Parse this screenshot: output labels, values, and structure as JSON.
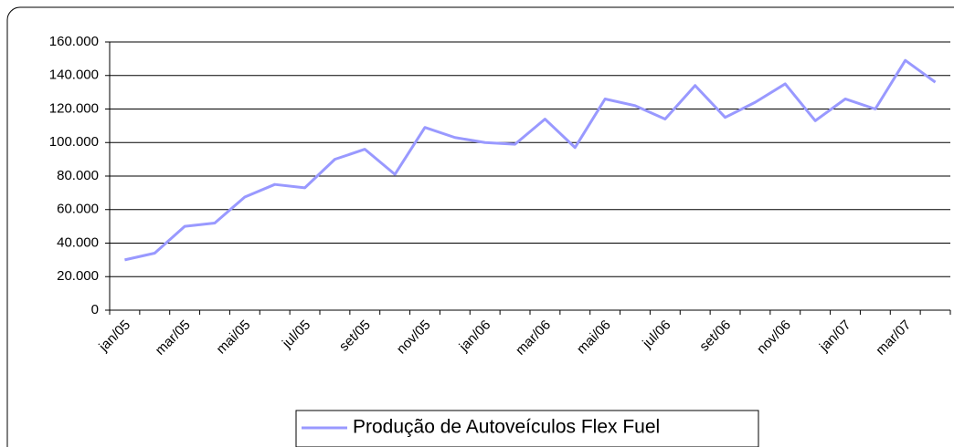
{
  "chart_data": {
    "type": "line",
    "categories": [
      "jan/05",
      null,
      "mar/05",
      null,
      "mai/05",
      null,
      "jul/05",
      null,
      "set/05",
      null,
      "nov/05",
      null,
      "jan/06",
      null,
      "mar/06",
      null,
      "mai/06",
      null,
      "jul/06",
      null,
      "set/06",
      null,
      "nov/06",
      null,
      "jan/07",
      null,
      "mar/07",
      null
    ],
    "series": [
      {
        "name": "Produção de Autoveículos Flex Fuel",
        "color": "#9999ff",
        "values": [
          30000,
          34000,
          50000,
          52000,
          67500,
          75000,
          73000,
          90000,
          96000,
          81000,
          109000,
          103000,
          100000,
          99000,
          114000,
          97000,
          126000,
          122000,
          114000,
          134000,
          115000,
          124000,
          135000,
          113000,
          126000,
          120000,
          149000,
          136000
        ]
      }
    ],
    "ylim": [
      0,
      160000
    ],
    "yticks": [
      0,
      {
        "value": 20000,
        "label": "20.000"
      },
      {
        "value": 40000,
        "label": "40.000"
      },
      {
        "value": 60000,
        "label": "60.000"
      },
      {
        "value": 80000,
        "label": "80.000"
      },
      {
        "value": 100000,
        "label": "100.000"
      },
      {
        "value": 120000,
        "label": "120.000"
      },
      {
        "value": 140000,
        "label": "140.000"
      },
      {
        "value": 160000,
        "label": "160.000"
      }
    ],
    "grid": true,
    "legend": "bottom"
  }
}
